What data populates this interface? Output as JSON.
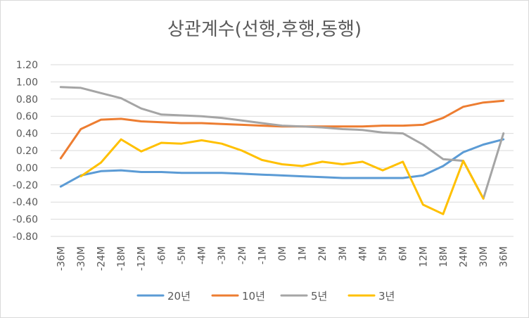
{
  "chart_data": {
    "type": "line",
    "title": "상관계수(선행,후행,동행)",
    "xlabel": "",
    "ylabel": "",
    "categories": [
      "-36M",
      "-30M",
      "-24M",
      "-18M",
      "-12M",
      "-6M",
      "-5M",
      "-4M",
      "-3M",
      "-2M",
      "-1M",
      "0M",
      "1M",
      "2M",
      "3M",
      "4M",
      "5M",
      "6M",
      "12M",
      "18M",
      "24M",
      "30M",
      "36M"
    ],
    "ylim": [
      -0.8,
      1.2
    ],
    "yticks": [
      1.2,
      1.0,
      0.8,
      0.6,
      0.4,
      0.2,
      0.0,
      -0.2,
      -0.4,
      -0.6,
      -0.8
    ],
    "ytick_labels": [
      "1.20",
      "1.00",
      "0.80",
      "0.60",
      "0.40",
      "0.20",
      "0.00",
      "-0.20",
      "-0.40",
      "-0.60",
      "-0.80"
    ],
    "grid": true,
    "legend_position": "bottom",
    "series": [
      {
        "name": "20년",
        "color": "#5b9bd5",
        "values": [
          -0.22,
          -0.09,
          -0.04,
          -0.03,
          -0.05,
          -0.05,
          -0.06,
          -0.06,
          -0.06,
          -0.07,
          -0.08,
          -0.09,
          -0.1,
          -0.11,
          -0.12,
          -0.12,
          -0.12,
          -0.12,
          -0.09,
          0.02,
          0.18,
          0.27,
          0.33
        ]
      },
      {
        "name": "10년",
        "color": "#ed7d31",
        "values": [
          0.11,
          0.45,
          0.56,
          0.57,
          0.54,
          0.53,
          0.52,
          0.52,
          0.51,
          0.5,
          0.49,
          0.48,
          0.48,
          0.48,
          0.48,
          0.48,
          0.49,
          0.49,
          0.5,
          0.58,
          0.71,
          0.76,
          0.78
        ]
      },
      {
        "name": "5년",
        "color": "#a5a5a5",
        "values": [
          0.94,
          0.93,
          0.87,
          0.81,
          0.69,
          0.62,
          0.61,
          0.6,
          0.58,
          0.55,
          0.52,
          0.49,
          0.48,
          0.47,
          0.45,
          0.44,
          0.41,
          0.4,
          0.27,
          0.1,
          0.08,
          -0.36,
          0.4
        ]
      },
      {
        "name": "3년",
        "color": "#ffc000",
        "values": [
          null,
          -0.1,
          0.06,
          0.33,
          0.19,
          0.29,
          0.28,
          0.32,
          0.28,
          0.2,
          0.09,
          0.04,
          0.02,
          0.07,
          0.04,
          0.07,
          -0.03,
          0.07,
          -0.43,
          -0.54,
          0.08,
          -0.36,
          null
        ]
      }
    ]
  }
}
